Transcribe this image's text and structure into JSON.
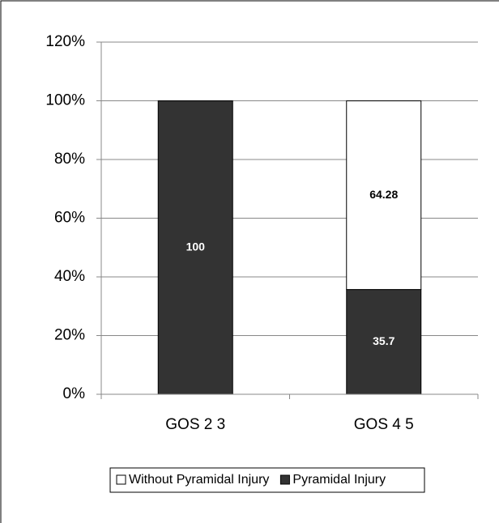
{
  "chart_data": {
    "type": "stacked_bar",
    "categories": [
      "GOS 2 3",
      "GOS 4 5"
    ],
    "series": [
      {
        "name": "Pyramidal Injury",
        "color": "#333333",
        "values": [
          100,
          35.7
        ]
      },
      {
        "name": "Without Pyramidal Injury",
        "color": "#ffffff",
        "values": [
          null,
          64.28
        ]
      }
    ],
    "ylim": [
      0,
      120
    ],
    "yticks": [
      {
        "value": 0,
        "label": "0%"
      },
      {
        "value": 20,
        "label": "20%"
      },
      {
        "value": 40,
        "label": "40%"
      },
      {
        "value": 60,
        "label": "60%"
      },
      {
        "value": 80,
        "label": "80%"
      },
      {
        "value": 100,
        "label": "100%"
      },
      {
        "value": 120,
        "label": "120%"
      }
    ],
    "grid": true
  }
}
